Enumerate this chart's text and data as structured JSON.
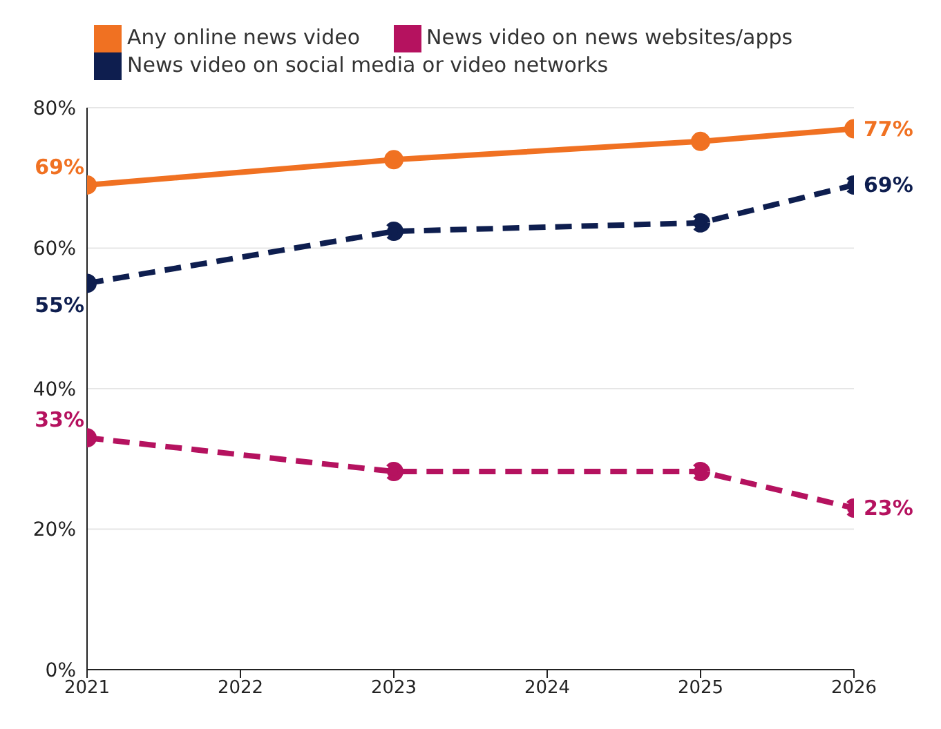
{
  "chart_data": {
    "type": "line",
    "x": [
      2021,
      2023,
      2025,
      2026
    ],
    "xlim": [
      2021,
      2026
    ],
    "xticks": [
      2021,
      2022,
      2023,
      2024,
      2025,
      2026
    ],
    "ylim": [
      0,
      80
    ],
    "yticks": [
      {
        "value": 0,
        "label": "0%"
      },
      {
        "value": 20,
        "label": "20%"
      },
      {
        "value": 40,
        "label": "40%"
      },
      {
        "value": 60,
        "label": "60%"
      },
      {
        "value": 80,
        "label": "80%"
      }
    ],
    "grid": "y",
    "legend": "top left",
    "marker": "circle",
    "series": [
      {
        "name": "Any online news video",
        "color": "#f07122",
        "values": [
          69,
          72.6,
          75.2,
          77
        ],
        "line_style": "solid",
        "value_labels": [
          "69%",
          null,
          null,
          "77%"
        ]
      },
      {
        "name": "News video on social media or video networks",
        "color": "#0e1e4f",
        "values": [
          55,
          62.4,
          63.6,
          69
        ],
        "line_style": "dashed",
        "value_labels": [
          "55%",
          null,
          null,
          "69%"
        ]
      },
      {
        "name": "News video on news websites/apps",
        "color": "#b5125f",
        "values": [
          33,
          28.2,
          28.2,
          23
        ],
        "line_style": "dashed",
        "value_labels": [
          "33%",
          null,
          null,
          "23%"
        ]
      }
    ]
  }
}
